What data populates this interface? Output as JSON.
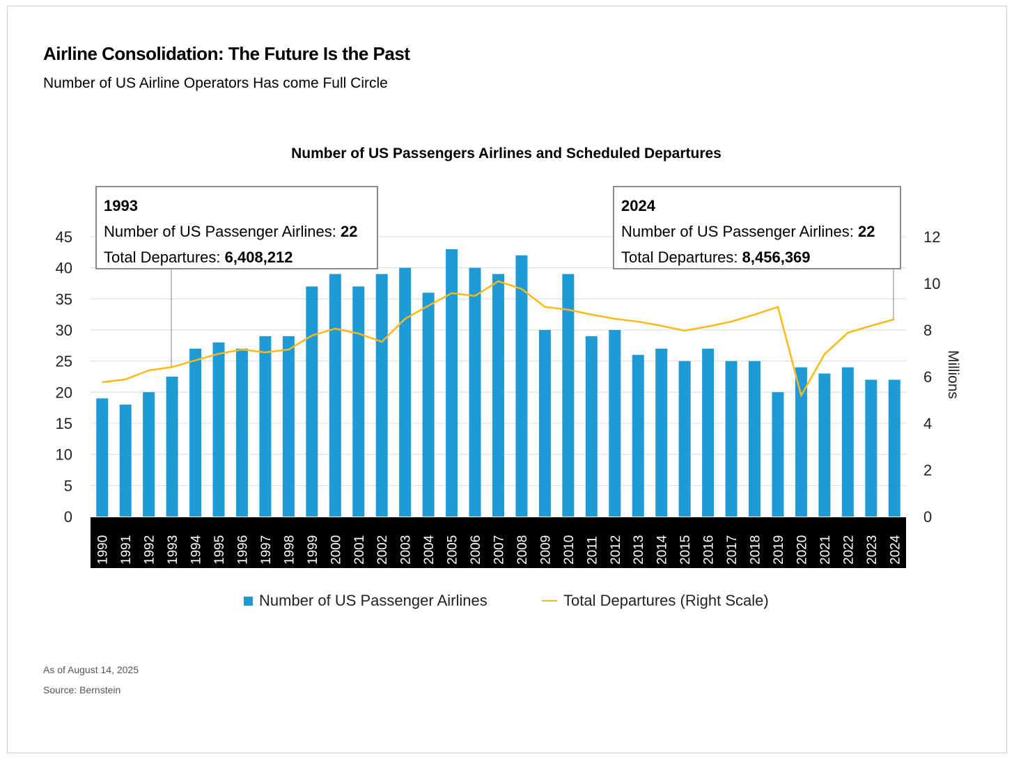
{
  "header": {
    "title": "Airline Consolidation: The Future Is the Past",
    "subtitle": "Number of US Airline Operators Has come Full Circle"
  },
  "annotations": [
    {
      "year": "1993",
      "airlines_label": "Number of US Passenger Airlines:",
      "airlines_value": "22",
      "departures_label": "Total Departures:",
      "departures_value": "6,408,212"
    },
    {
      "year": "2024",
      "airlines_label": "Number of US Passenger Airlines:",
      "airlines_value": "22",
      "departures_label": "Total Departures:",
      "departures_value": "8,456,369"
    }
  ],
  "footer": {
    "date": "As of August 14, 2025",
    "source": "Source: Bernstein"
  },
  "colors": {
    "bar": "#1e9ad6",
    "line": "#fdb913",
    "xband": "#000000",
    "grid": "#d9d9d9"
  },
  "chart_data": {
    "type": "bar+line",
    "title": "Number of US Passengers Airlines and Scheduled Departures",
    "categories": [
      "1990",
      "1991",
      "1992",
      "1993",
      "1994",
      "1995",
      "1996",
      "1997",
      "1998",
      "1999",
      "2000",
      "2001",
      "2002",
      "2003",
      "2004",
      "2005",
      "2006",
      "2007",
      "2008",
      "2009",
      "2010",
      "2011",
      "2012",
      "2013",
      "2014",
      "2015",
      "2016",
      "2017",
      "2018",
      "2019",
      "2020",
      "2021",
      "2022",
      "2023",
      "2024"
    ],
    "series": [
      {
        "name": "Number of US Passenger Airlines",
        "type": "bar",
        "axis": "left",
        "values": [
          19,
          18,
          20,
          22.5,
          27,
          28,
          27,
          29,
          29,
          37,
          39,
          37,
          39,
          40,
          36,
          43,
          40,
          39,
          42,
          30,
          39,
          29,
          30,
          26,
          27,
          25,
          27,
          25,
          25,
          20,
          24,
          23,
          24,
          22,
          22
        ]
      },
      {
        "name": "Total Departures (Right Scale)",
        "type": "line",
        "axis": "right",
        "values": [
          5.76,
          5.88,
          6.27,
          6.41,
          6.7,
          6.98,
          7.16,
          7.04,
          7.16,
          7.76,
          8.06,
          7.85,
          7.49,
          8.48,
          9.04,
          9.58,
          9.46,
          10.09,
          9.76,
          8.99,
          8.87,
          8.66,
          8.48,
          8.36,
          8.18,
          7.97,
          8.15,
          8.36,
          8.66,
          8.99,
          5.19,
          6.96,
          7.88,
          8.18,
          8.46
        ]
      }
    ],
    "ylim_left": [
      0,
      45
    ],
    "yticks_left": [
      "0",
      "5",
      "10",
      "15",
      "20",
      "25",
      "30",
      "35",
      "40",
      "45"
    ],
    "ylim_right": [
      0,
      12
    ],
    "yticks_right": [
      "0",
      "2",
      "4",
      "6",
      "8",
      "10",
      "12"
    ],
    "ylabel_right": "Millions",
    "grid": true,
    "legend": "bottom-center"
  }
}
